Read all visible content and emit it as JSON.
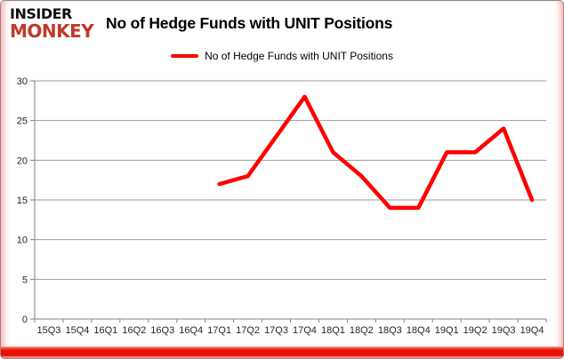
{
  "header": {
    "logo_line1": "INSIDER",
    "logo_line2": "MONKEY",
    "title": "No of Hedge Funds with UNIT Positions"
  },
  "legend": {
    "label": "No of Hedge Funds with UNIT Positions",
    "swatch_color": "#fe0000"
  },
  "colors": {
    "line": "#fe0000",
    "grid": "#9b9b9b",
    "axis": "#808080",
    "tick_text": "#262626",
    "logo_red": "#c0392b",
    "bottom_bar_red": "#e40f02"
  },
  "chart_data": {
    "type": "line",
    "title": "No of Hedge Funds with UNIT Positions",
    "categories": [
      "15Q3",
      "15Q4",
      "16Q1",
      "16Q2",
      "16Q3",
      "16Q4",
      "17Q1",
      "17Q2",
      "17Q3",
      "17Q4",
      "18Q1",
      "18Q2",
      "18Q3",
      "18Q4",
      "19Q1",
      "19Q2",
      "19Q3",
      "19Q4"
    ],
    "series": [
      {
        "name": "No of Hedge Funds with UNIT Positions",
        "color": "#fe0000",
        "values": [
          null,
          null,
          null,
          null,
          null,
          null,
          17,
          18,
          23,
          28,
          21,
          18,
          14,
          14,
          21,
          21,
          24,
          15
        ]
      }
    ],
    "xlabel": "",
    "ylabel": "",
    "ylim": [
      0,
      30
    ],
    "ytick_step": 5,
    "grid": true,
    "legend_position": "top"
  }
}
